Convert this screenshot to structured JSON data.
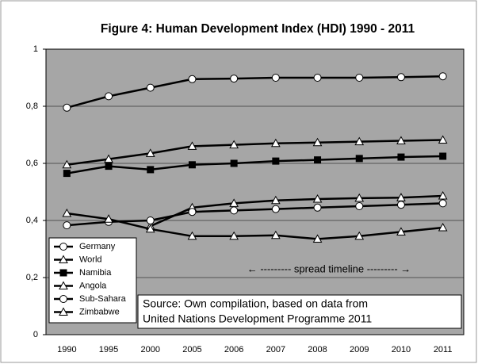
{
  "chart_data": {
    "type": "line",
    "title": "Figure 4: Human Development Index (HDI) 1990 - 2011",
    "categories": [
      "1990",
      "1995",
      "2000",
      "2005",
      "2006",
      "2007",
      "2008",
      "2009",
      "2010",
      "2011"
    ],
    "ylim": [
      0,
      1
    ],
    "yticks": [
      0,
      {
        "value": 0.2,
        "label": "0,2"
      },
      {
        "value": 0.4,
        "label": "0,4"
      },
      {
        "value": 0.6,
        "label": "0,6"
      },
      {
        "value": 0.8,
        "label": "0,8"
      },
      1
    ],
    "grid": true,
    "legend": "lower left",
    "series": [
      {
        "name": "Germany",
        "color": "#000000",
        "marker": "circle",
        "marker_fill": "#ffffff",
        "values": [
          0.795,
          0.835,
          0.865,
          0.895,
          0.897,
          0.9,
          0.9,
          0.9,
          0.902,
          0.905
        ]
      },
      {
        "name": "World",
        "color": "#000000",
        "marker": "triangle",
        "marker_fill": "#ffffff",
        "values": [
          0.595,
          0.615,
          0.635,
          0.66,
          0.665,
          0.67,
          0.673,
          0.676,
          0.679,
          0.682
        ]
      },
      {
        "name": "Namibia",
        "color": "#000000",
        "marker": "square",
        "marker_fill": "#000000",
        "values": [
          0.565,
          0.59,
          0.578,
          0.595,
          0.6,
          0.608,
          0.612,
          0.617,
          0.622,
          0.625
        ]
      },
      {
        "name": "Angola",
        "color": "#000000",
        "marker": "triangle",
        "marker_fill": "#ffffff",
        "values": [
          null,
          null,
          0.38,
          0.445,
          0.46,
          0.47,
          0.475,
          0.478,
          0.48,
          0.486
        ]
      },
      {
        "name": "Sub-Sahara",
        "color": "#000000",
        "marker": "circle",
        "marker_fill": "#ffffff",
        "values": [
          0.383,
          0.395,
          0.4,
          0.43,
          0.435,
          0.44,
          0.445,
          0.45,
          0.455,
          0.46
        ]
      },
      {
        "name": "Zimbabwe",
        "color": "#000000",
        "marker": "triangle",
        "marker_fill": "#ffffff",
        "values": [
          0.425,
          0.405,
          0.37,
          0.345,
          0.345,
          0.348,
          0.335,
          0.345,
          0.36,
          0.375
        ]
      }
    ],
    "annotations": [
      "← --------- spread timeline --------- →",
      "Source: Own compilation, based on data from",
      "United Nations Development Programme 2011"
    ]
  }
}
